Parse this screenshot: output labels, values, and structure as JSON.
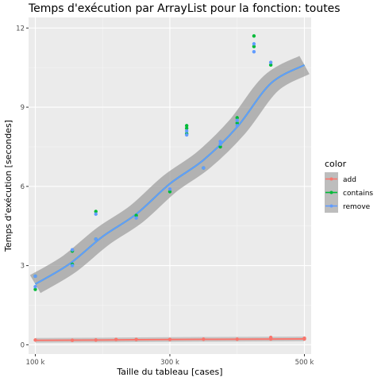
{
  "chart_data": {
    "type": "scatter",
    "title": "Temps d'exécution par ArrayList pour la fonction: toutes",
    "xlabel": "Taille du tableau [cases]",
    "ylabel": "Temps d'exécution [secondes]",
    "xlim": [
      90000,
      510000
    ],
    "ylim": [
      -0.35,
      12.4
    ],
    "x_ticks": [
      100000,
      300000,
      500000
    ],
    "x_tick_labels": [
      "100 k",
      "300 k",
      "500 k"
    ],
    "y_ticks": [
      0,
      3,
      6,
      9,
      12
    ],
    "y_tick_labels": [
      "0",
      "3",
      "6",
      "9",
      "12"
    ],
    "grid": true,
    "legend": {
      "title": "color",
      "position": "right"
    },
    "series": [
      {
        "name": "add",
        "color": "#F8766D",
        "points": [
          [
            100000,
            0.18
          ],
          [
            155000,
            0.17
          ],
          [
            190000,
            0.18
          ],
          [
            220000,
            0.2
          ],
          [
            250000,
            0.2
          ],
          [
            300000,
            0.2
          ],
          [
            350000,
            0.21
          ],
          [
            400000,
            0.21
          ],
          [
            450000,
            0.22
          ],
          [
            450000,
            0.28
          ],
          [
            500000,
            0.22
          ],
          [
            500000,
            0.25
          ]
        ],
        "smooth": [
          [
            100000,
            0.17
          ],
          [
            200000,
            0.18
          ],
          [
            300000,
            0.2
          ],
          [
            400000,
            0.21
          ],
          [
            500000,
            0.22
          ]
        ]
      },
      {
        "name": "contains",
        "color": "#00BA38",
        "points": [
          [
            100000,
            2.1
          ],
          [
            100000,
            2.6
          ],
          [
            155000,
            3.05
          ],
          [
            155000,
            3.55
          ],
          [
            190000,
            4.0
          ],
          [
            190000,
            5.05
          ],
          [
            250000,
            4.9
          ],
          [
            300000,
            5.8
          ],
          [
            325000,
            8.0
          ],
          [
            325000,
            8.2
          ],
          [
            325000,
            8.3
          ],
          [
            350000,
            6.7
          ],
          [
            375000,
            7.5
          ],
          [
            400000,
            8.6
          ],
          [
            400000,
            8.4
          ],
          [
            425000,
            11.7
          ],
          [
            425000,
            11.3
          ],
          [
            450000,
            10.6
          ]
        ],
        "smooth": [
          [
            100000,
            2.3
          ],
          [
            150000,
            3.05
          ],
          [
            200000,
            4.1
          ],
          [
            250000,
            4.95
          ],
          [
            300000,
            6.1
          ],
          [
            350000,
            7.0
          ],
          [
            400000,
            8.25
          ],
          [
            450000,
            9.9
          ],
          [
            500000,
            10.6
          ]
        ]
      },
      {
        "name": "remove",
        "color": "#619CFF",
        "points": [
          [
            100000,
            2.2
          ],
          [
            100000,
            2.6
          ],
          [
            155000,
            3.0
          ],
          [
            155000,
            3.6
          ],
          [
            190000,
            4.0
          ],
          [
            190000,
            4.95
          ],
          [
            250000,
            4.8
          ],
          [
            300000,
            5.9
          ],
          [
            325000,
            7.95
          ],
          [
            325000,
            8.1
          ],
          [
            350000,
            6.7
          ],
          [
            375000,
            7.6
          ],
          [
            375000,
            7.7
          ],
          [
            400000,
            8.3
          ],
          [
            400000,
            8.5
          ],
          [
            425000,
            11.1
          ],
          [
            425000,
            11.4
          ],
          [
            450000,
            10.7
          ]
        ],
        "smooth": [
          [
            100000,
            2.3
          ],
          [
            150000,
            3.05
          ],
          [
            200000,
            4.1
          ],
          [
            250000,
            4.95
          ],
          [
            300000,
            6.1
          ],
          [
            350000,
            7.0
          ],
          [
            400000,
            8.25
          ],
          [
            450000,
            9.9
          ],
          [
            500000,
            10.6
          ]
        ]
      }
    ]
  }
}
